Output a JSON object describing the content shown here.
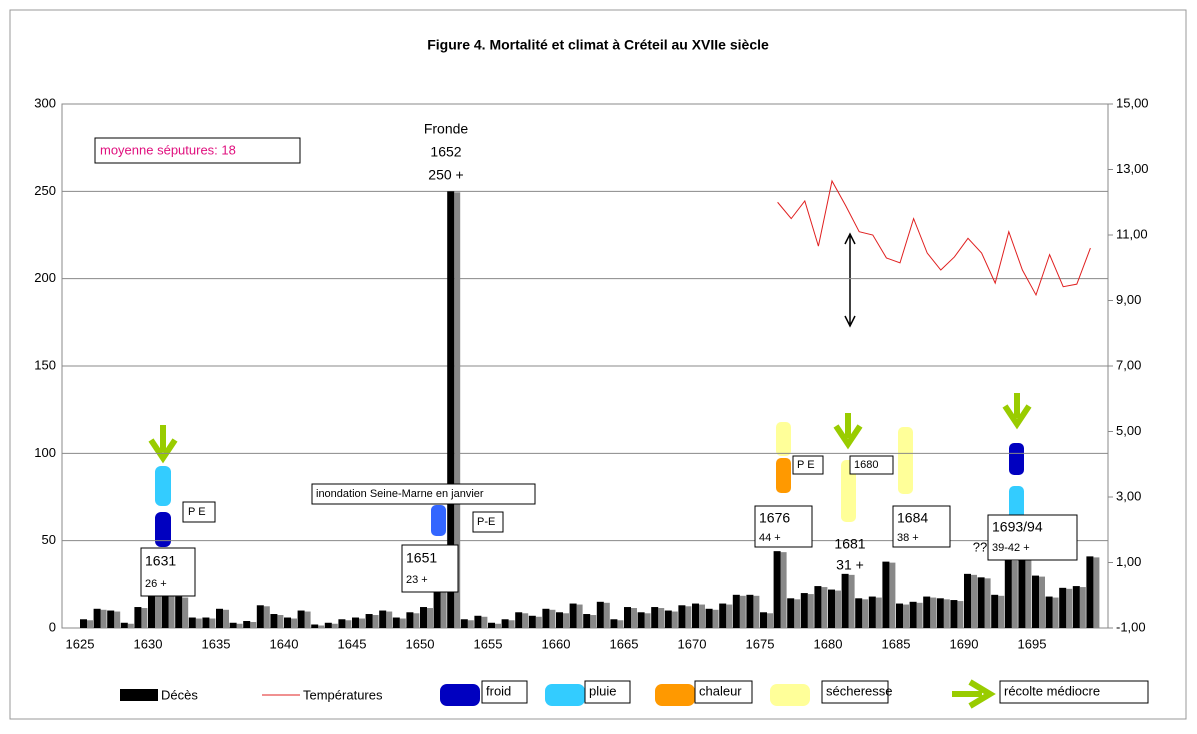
{
  "chart_data": {
    "type": "bar",
    "title": "Figure 4. Mortalité et climat à Créteil au XVIIe siècle",
    "categories": [
      "1625",
      null,
      null,
      null,
      null,
      "1630",
      null,
      null,
      null,
      null,
      "1635",
      null,
      null,
      null,
      null,
      "1640",
      null,
      null,
      null,
      null,
      "1645",
      null,
      null,
      null,
      null,
      "1650",
      null,
      null,
      null,
      null,
      "1655",
      null,
      null,
      null,
      null,
      "1660",
      null,
      null,
      null,
      null,
      "1665",
      null,
      null,
      null,
      null,
      "1670",
      null,
      null,
      null,
      null,
      "1675",
      null,
      null,
      null,
      null,
      "1680",
      null,
      null,
      null,
      null,
      "1685",
      null,
      null,
      null,
      null,
      "1690",
      null,
      null,
      null,
      null,
      "1695",
      null,
      null,
      null,
      null
    ],
    "series": [
      {
        "name": "Décès",
        "color": "#000000",
        "values": [
          5,
          11,
          10,
          3,
          12,
          20,
          26,
          18,
          6,
          6,
          11,
          3,
          4,
          13,
          8,
          6,
          10,
          2,
          3,
          5,
          6,
          8,
          10,
          6,
          9,
          12,
          23,
          250,
          5,
          7,
          3,
          5,
          9,
          7,
          11,
          9,
          14,
          8,
          15,
          5,
          12,
          9,
          12,
          10,
          13,
          14,
          11,
          14,
          19,
          19,
          9,
          44,
          17,
          20,
          24,
          22,
          31,
          17,
          18,
          38,
          14,
          15,
          18,
          17,
          16,
          31,
          29,
          19,
          39,
          42,
          30,
          18,
          23,
          24,
          41
        ]
      },
      {
        "name": "Températures",
        "color": "#e02020",
        "type": "line",
        "axis": "y2",
        "values": [
          null,
          null,
          null,
          null,
          null,
          null,
          null,
          null,
          null,
          null,
          null,
          null,
          null,
          null,
          null,
          null,
          null,
          null,
          null,
          null,
          null,
          null,
          null,
          null,
          null,
          null,
          null,
          null,
          null,
          null,
          null,
          null,
          null,
          null,
          null,
          null,
          null,
          null,
          null,
          null,
          null,
          null,
          null,
          null,
          null,
          null,
          null,
          null,
          null,
          null,
          null,
          12.0,
          11.5,
          12.04,
          10.66,
          12.65,
          11.9,
          11.1,
          11.0,
          10.3,
          10.15,
          11.5,
          10.45,
          9.93,
          10.33,
          10.9,
          10.45,
          9.53,
          11.1,
          9.93,
          9.17,
          10.4,
          9.42,
          9.5,
          10.6
        ]
      }
    ],
    "ylim": [
      0,
      300
    ],
    "yticks": [
      0,
      50,
      100,
      150,
      200,
      250,
      300
    ],
    "y2lim": [
      -1,
      15
    ],
    "y2ticks": [
      {
        "value": -1,
        "label": "-1,00"
      },
      {
        "value": 1,
        "label": "1,00"
      },
      {
        "value": 3,
        "label": "3,00"
      },
      {
        "value": 5,
        "label": "5,00"
      },
      {
        "value": 7,
        "label": "7,00"
      },
      {
        "value": 9,
        "label": "9,00"
      },
      {
        "value": 11,
        "label": "11,00"
      },
      {
        "value": 13,
        "label": "13,00"
      },
      {
        "value": 15,
        "label": "15,00"
      }
    ],
    "grid": true,
    "climate_legend": [
      {
        "name": "froid",
        "color": "#0000c0"
      },
      {
        "name": "pluie",
        "color": "#33ccff"
      },
      {
        "name": "chaleur",
        "color": "#ff9900"
      },
      {
        "name": "sécheresse",
        "color": "#ffff99"
      },
      {
        "name": "récolte médiocre",
        "color": "#99cc00"
      }
    ],
    "annotations": [
      "moyenne séputures: 18",
      "Fronde",
      "1652",
      "250 +",
      "1631",
      "26 +",
      "P E",
      "inondation Seine-Marne en janvier",
      "P-E",
      "1651",
      "23 +",
      "1676",
      "44 +",
      "P E",
      "1680",
      "1681",
      "31 +",
      "1684",
      "38 +",
      "??",
      "1693/94",
      "39-42 +"
    ]
  }
}
